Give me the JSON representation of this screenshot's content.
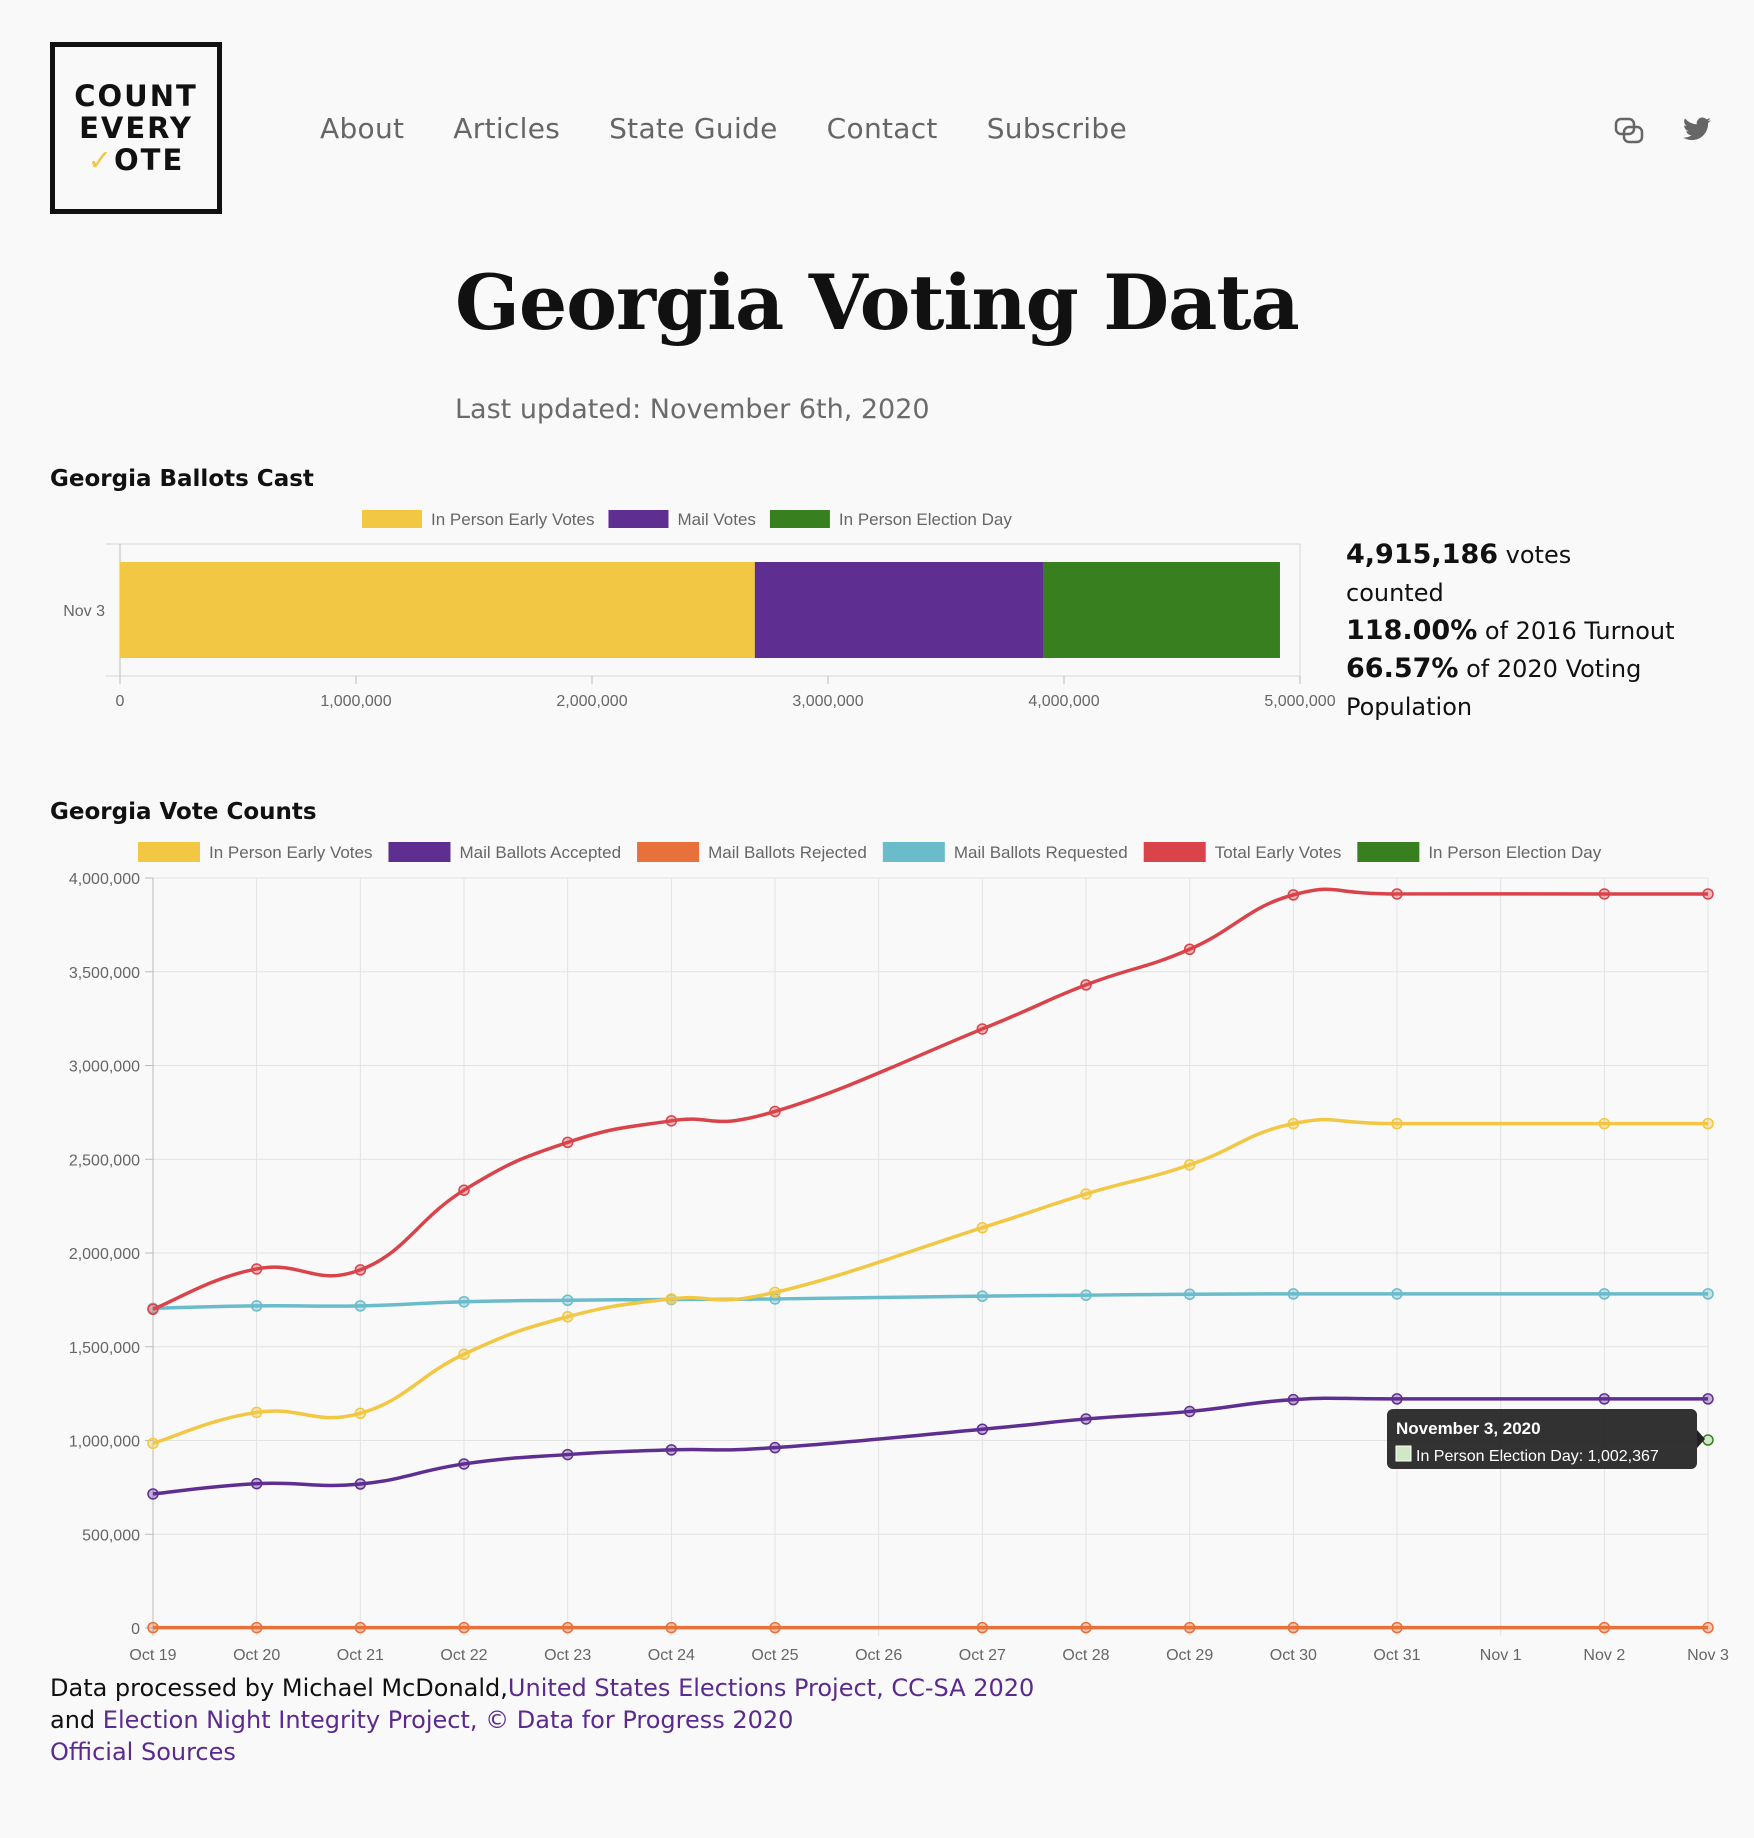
{
  "logo": {
    "line1": "COUNT",
    "line2": "EVERY",
    "line3_check": "✓",
    "line3_rest": "OTE"
  },
  "nav": {
    "about": "About",
    "articles": "Articles",
    "state_guide": "State Guide",
    "contact": "Contact",
    "subscribe": "Subscribe"
  },
  "social": {
    "icons": [
      "chat-icon",
      "twitter-icon"
    ]
  },
  "page": {
    "title": "Georgia Voting Data",
    "updated": "Last updated: November 6th, 2020"
  },
  "ballots_section": {
    "title": "Georgia Ballots Cast"
  },
  "counts_section": {
    "title": "Georgia Vote Counts"
  },
  "stats": {
    "votes_value": "4,915,186",
    "votes_suffix": " votes counted",
    "turnout_value": "118.00%",
    "turnout_suffix": " of 2016 Turnout",
    "population_value": "66.57%",
    "population_suffix": " of 2020 Voting Population"
  },
  "footer": {
    "text1": "Data processed by Michael McDonald,",
    "link1": "United States Elections Project, CC-SA 2020",
    "text2": "and ",
    "link2": "Election Night Integrity Project, © Data for Progress 2020",
    "link3": "Official Sources"
  },
  "colors": {
    "early": "#f2c744",
    "mail": "#5e2f91",
    "rejected": "#e8703a",
    "requested": "#6bbccb",
    "total": "#d9444b",
    "election": "#38801f"
  },
  "chart_data": [
    {
      "type": "bar",
      "orientation": "horizontal",
      "stacked": true,
      "title": "Georgia Ballots Cast",
      "categories": [
        "Nov 3"
      ],
      "series": [
        {
          "name": "In Person Early Votes",
          "values": [
            2690000
          ]
        },
        {
          "name": "Mail Votes",
          "values": [
            1222819
          ]
        },
        {
          "name": "In Person Election Day",
          "values": [
            1002367
          ]
        }
      ],
      "xlim": [
        0,
        5000000
      ],
      "xticks": [
        "0",
        "1,000,000",
        "2,000,000",
        "3,000,000",
        "4,000,000",
        "5,000,000"
      ],
      "legend": "top"
    },
    {
      "type": "line",
      "title": "Georgia Vote Counts",
      "x": [
        "Oct 19",
        "Oct 20",
        "Oct 21",
        "Oct 22",
        "Oct 23",
        "Oct 24",
        "Oct 25",
        "Oct 26",
        "Oct 27",
        "Oct 28",
        "Oct 29",
        "Oct 30",
        "Oct 31",
        "Nov 1",
        "Nov 2",
        "Nov 3"
      ],
      "ylim": [
        0,
        4000000
      ],
      "yticks": [
        "0",
        "500,000",
        "1,000,000",
        "1,500,000",
        "2,000,000",
        "2,500,000",
        "3,000,000",
        "3,500,000",
        "4,000,000"
      ],
      "grid": true,
      "legend": "top",
      "series": [
        {
          "name": "In Person Early Votes",
          "values": [
            985000,
            1150000,
            1145000,
            1460000,
            1660000,
            1755000,
            1790000,
            null,
            2135000,
            2315000,
            2470000,
            2690000,
            2690000,
            null,
            2690000,
            2690000
          ]
        },
        {
          "name": "Mail Ballots Accepted",
          "values": [
            715000,
            770000,
            768000,
            875000,
            925000,
            950000,
            962000,
            null,
            1060000,
            1115000,
            1155000,
            1218000,
            1222000,
            null,
            1222000,
            1222000
          ]
        },
        {
          "name": "Mail Ballots Rejected",
          "values": [
            2000,
            2000,
            2000,
            2000,
            2000,
            2000,
            2000,
            null,
            2000,
            2000,
            2000,
            2000,
            2000,
            null,
            2000,
            2000
          ]
        },
        {
          "name": "Mail Ballots Requested",
          "values": [
            1705000,
            1718000,
            1718000,
            1740000,
            1748000,
            1752000,
            1755000,
            null,
            1770000,
            1775000,
            1780000,
            1782000,
            1782000,
            null,
            1782000,
            1782000
          ]
        },
        {
          "name": "Total Early Votes",
          "values": [
            1700000,
            1915000,
            1910000,
            2335000,
            2590000,
            2705000,
            2755000,
            null,
            3195000,
            3430000,
            3620000,
            3910000,
            3915000,
            null,
            3915000,
            3915000
          ]
        },
        {
          "name": "In Person Election Day",
          "values": [
            null,
            null,
            null,
            null,
            null,
            null,
            null,
            null,
            null,
            null,
            null,
            null,
            null,
            null,
            null,
            1002367
          ]
        }
      ],
      "tooltip": {
        "title": "November 3, 2020",
        "label": "In Person Election Day: 1,002,367"
      }
    }
  ]
}
